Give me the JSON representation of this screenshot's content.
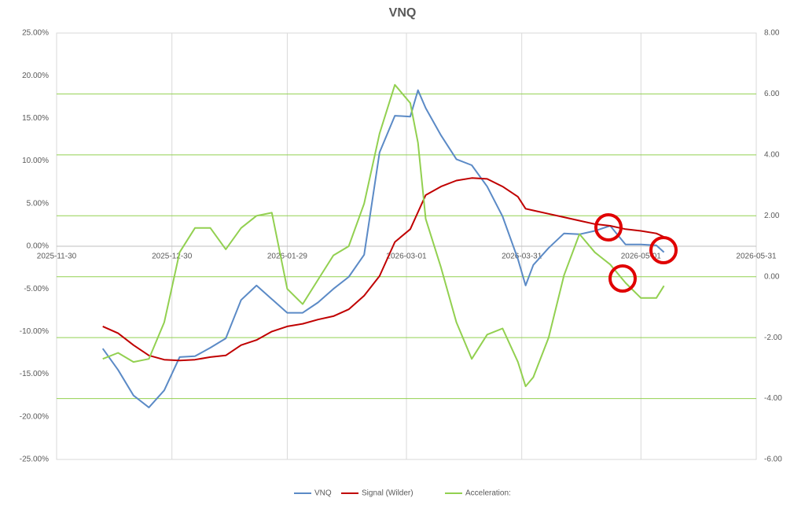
{
  "chart_data": {
    "type": "line",
    "title": "VNQ",
    "x": [
      "2025-12-12",
      "2025-12-16",
      "2025-12-20",
      "2025-12-24",
      "2025-12-28",
      "2026-01-01",
      "2026-01-05",
      "2026-01-09",
      "2026-01-13",
      "2026-01-17",
      "2026-01-21",
      "2026-01-25",
      "2026-01-29",
      "2026-02-02",
      "2026-02-06",
      "2026-02-10",
      "2026-02-14",
      "2026-02-18",
      "2026-02-22",
      "2026-02-26",
      "2026-03-02",
      "2026-03-04",
      "2026-03-06",
      "2026-03-10",
      "2026-03-14",
      "2026-03-18",
      "2026-03-22",
      "2026-03-26",
      "2026-03-30",
      "2026-04-01",
      "2026-04-03",
      "2026-04-07",
      "2026-04-11",
      "2026-04-15",
      "2026-04-19",
      "2026-04-23",
      "2026-04-27",
      "2026-05-01",
      "2026-05-05",
      "2026-05-07"
    ],
    "series": [
      {
        "name": "VNQ",
        "color": "#5b8ac6",
        "axis": "y",
        "values": [
          -12.0,
          -14.5,
          -17.5,
          -18.9,
          -16.9,
          -13.0,
          -12.9,
          -11.9,
          -10.8,
          -6.3,
          -4.6,
          -6.2,
          -7.8,
          -7.8,
          -6.6,
          -5.0,
          -3.6,
          -1.0,
          11.0,
          15.3,
          15.2,
          18.3,
          16.2,
          13.0,
          10.2,
          9.5,
          7.0,
          3.5,
          -1.5,
          -4.6,
          -2.2,
          -0.2,
          1.5,
          1.4,
          1.8,
          2.4,
          0.2,
          0.2,
          0.1,
          -0.7
        ]
      },
      {
        "name": "Signal (Wilder)",
        "color": "#c00000",
        "axis": "y",
        "values": [
          -9.4,
          -10.2,
          -11.6,
          -12.8,
          -13.3,
          -13.4,
          -13.3,
          -13.0,
          -12.8,
          -11.6,
          -11.0,
          -10.0,
          -9.4,
          -9.1,
          -8.6,
          -8.2,
          -7.4,
          -5.8,
          -3.5,
          0.5,
          2.0,
          4.0,
          6.0,
          7.0,
          7.7,
          8.0,
          7.9,
          7.0,
          5.8,
          4.4,
          4.2,
          3.8,
          3.4,
          3.0,
          2.6,
          2.4,
          2.0,
          1.8,
          1.5,
          1.1
        ]
      },
      {
        "name": "Acceleration:",
        "color": "#92d050",
        "axis": "y2",
        "values": [
          -2.7,
          -2.5,
          -2.8,
          -2.7,
          -1.5,
          0.8,
          1.6,
          1.6,
          0.9,
          1.6,
          2.0,
          2.1,
          -0.4,
          -0.9,
          -0.1,
          0.7,
          1.0,
          2.4,
          4.7,
          6.3,
          5.7,
          4.4,
          1.9,
          0.3,
          -1.5,
          -2.7,
          -1.9,
          -1.7,
          -2.8,
          -3.6,
          -3.3,
          -2.0,
          0.05,
          1.4,
          0.8,
          0.4,
          -0.2,
          -0.7,
          -0.7,
          -0.3
        ]
      }
    ],
    "xlim": [
      "2025-11-30",
      "2026-05-31"
    ],
    "xticks": [
      "2025-11-30",
      "2025-12-30",
      "2026-01-29",
      "2026-03-01",
      "2026-03-31",
      "2026-05-01",
      "2026-05-31"
    ],
    "ylim": [
      -25,
      25
    ],
    "yticks": [
      {
        "value": 25,
        "label": "25.00%"
      },
      {
        "value": 20,
        "label": "20.00%"
      },
      {
        "value": 15,
        "label": "15.00%"
      },
      {
        "value": 10,
        "label": "10.00%"
      },
      {
        "value": 5,
        "label": "5.00%"
      },
      {
        "value": 0,
        "label": "0.00%"
      },
      {
        "value": -5,
        "label": "-5.00%"
      },
      {
        "value": -10,
        "label": "-10.00%"
      },
      {
        "value": -15,
        "label": "-15.00%"
      },
      {
        "value": -20,
        "label": "-20.00%"
      },
      {
        "value": -25,
        "label": "-25.00%"
      }
    ],
    "y2lim": [
      -6,
      8
    ],
    "y2ticks": [
      {
        "value": 8,
        "label": "8.00"
      },
      {
        "value": 6,
        "label": "6.00"
      },
      {
        "value": 4,
        "label": "4.00"
      },
      {
        "value": 2,
        "label": "2.00"
      },
      {
        "value": 0,
        "label": "0.00"
      },
      {
        "value": -2,
        "label": "-2.00"
      },
      {
        "value": -4,
        "label": "-4.00"
      },
      {
        "value": -6,
        "label": "-6.00"
      }
    ],
    "grid": true,
    "legend": "bottom"
  }
}
